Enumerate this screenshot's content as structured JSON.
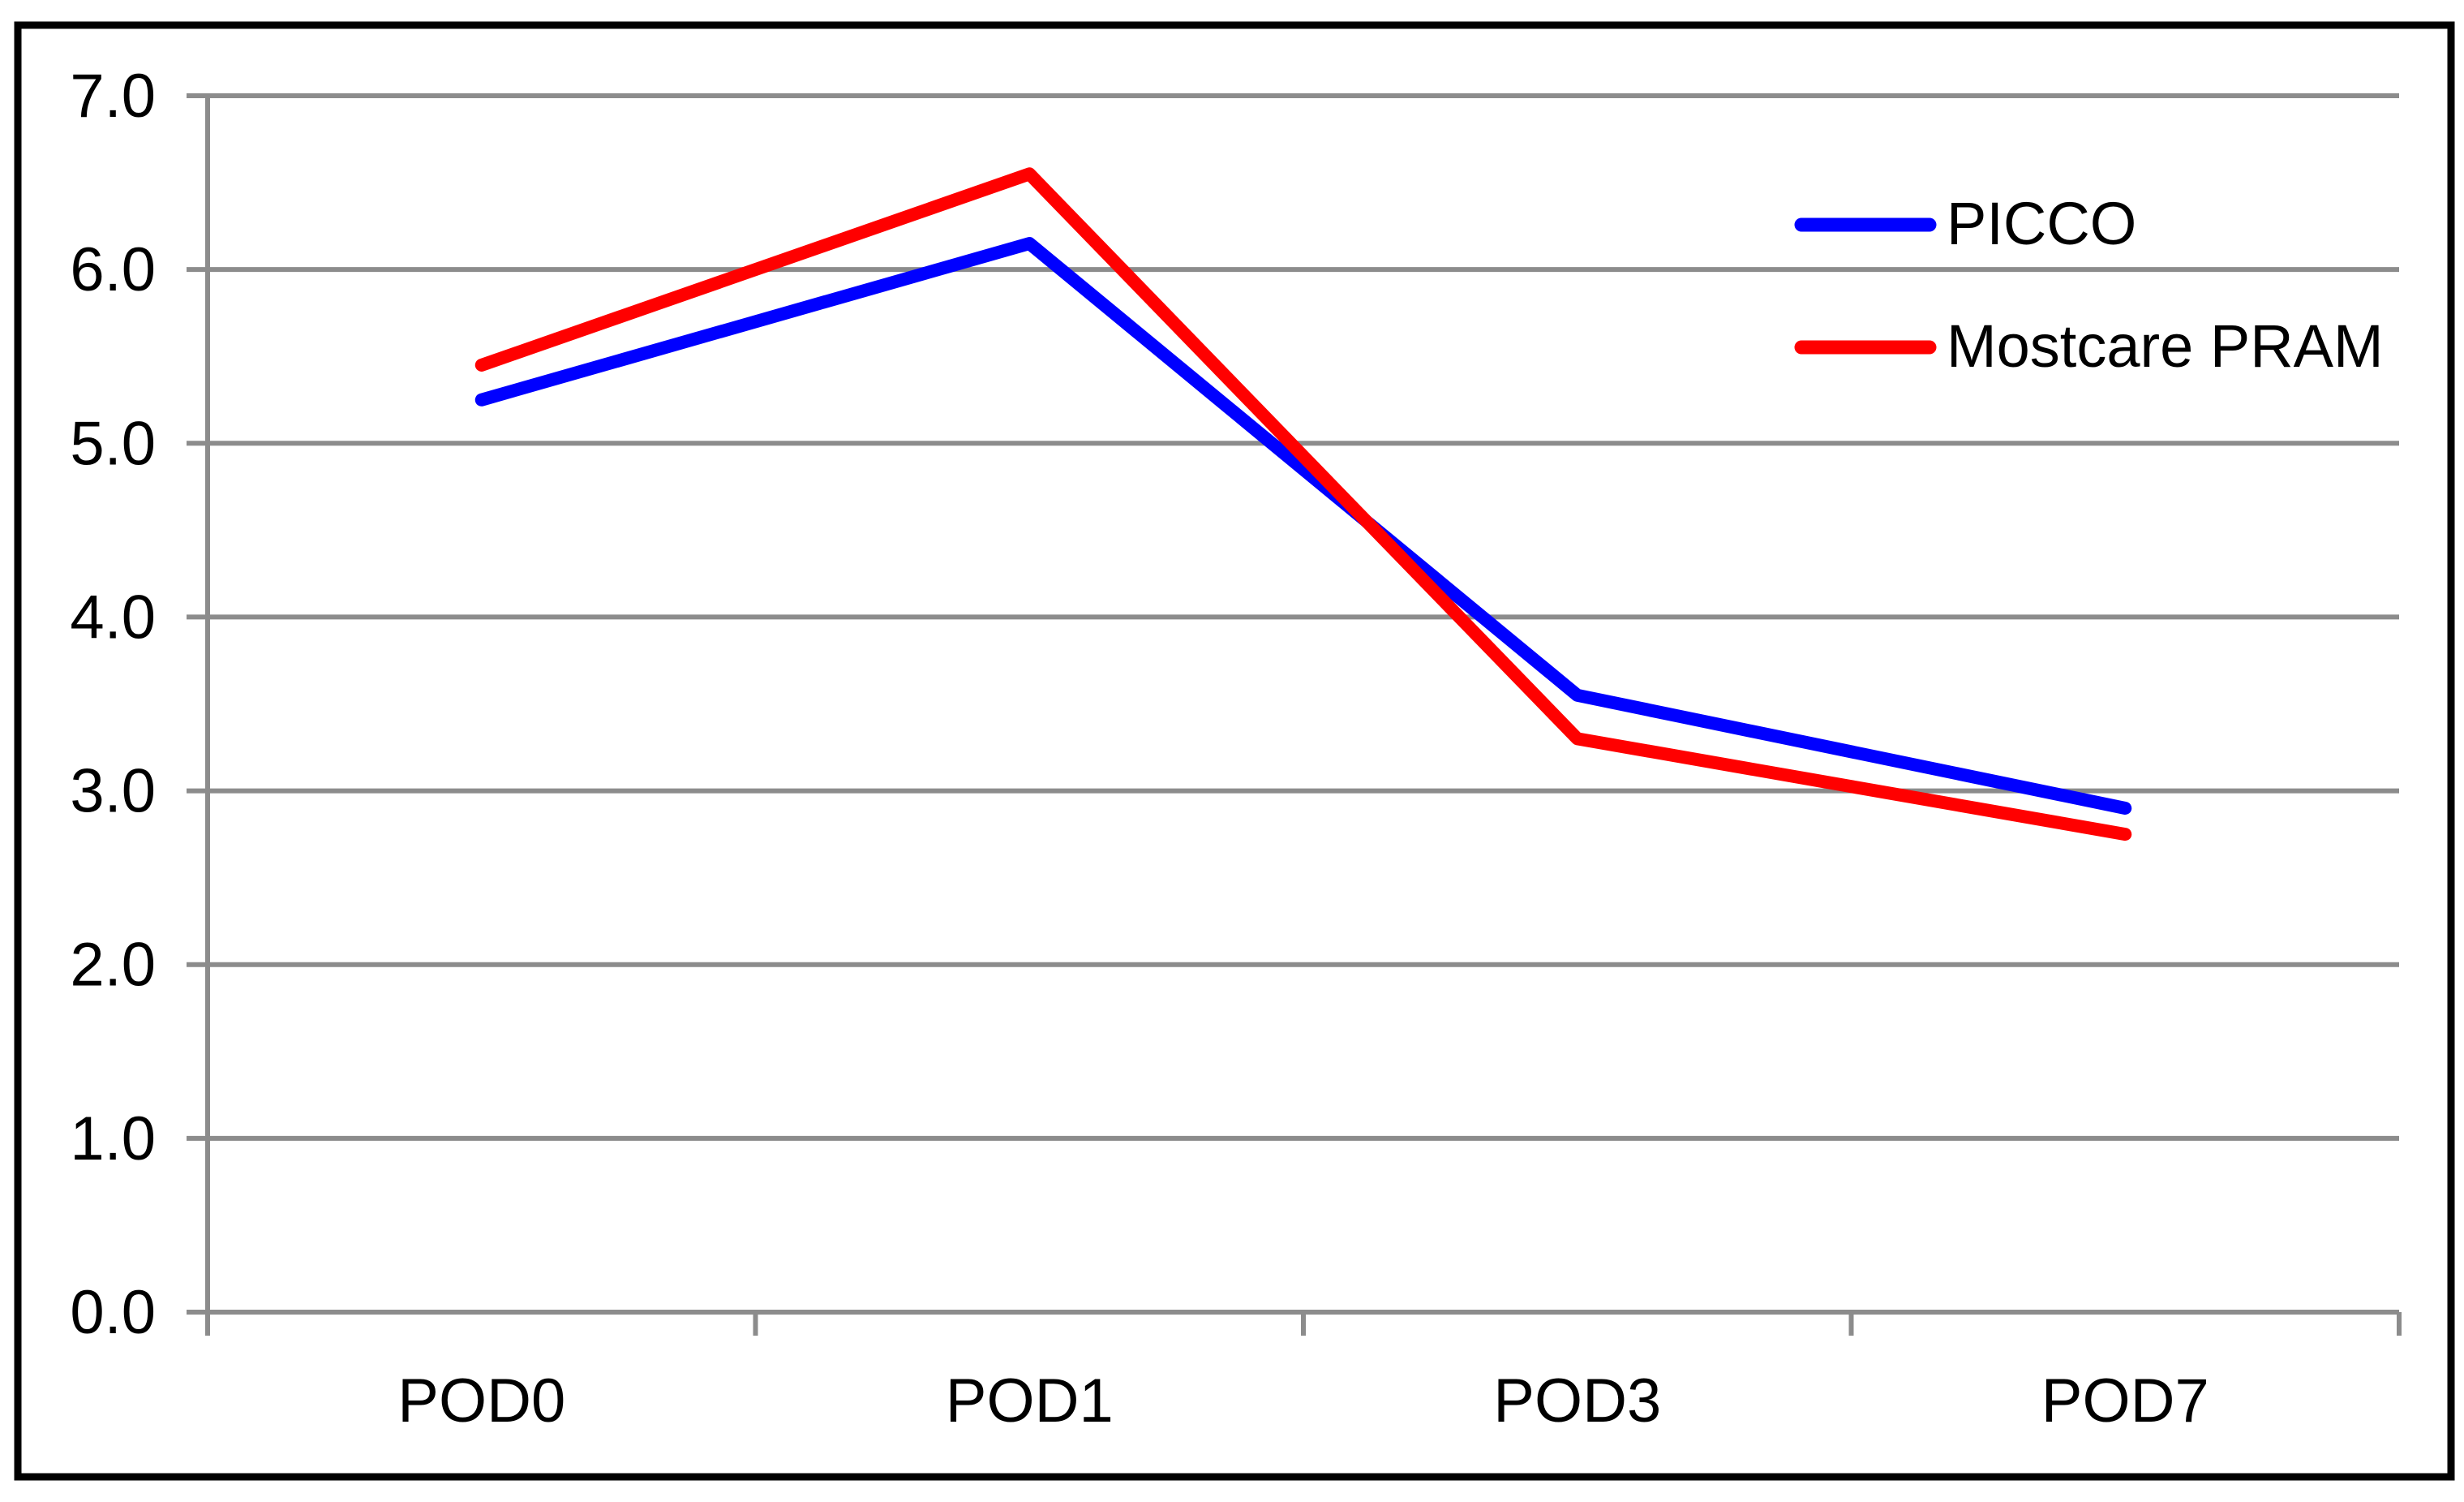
{
  "figure": {
    "background_color": "#FFFFFF",
    "border_color": "#000000"
  },
  "chart_data": {
    "type": "line",
    "title": "",
    "xlabel": "",
    "ylabel": "",
    "categories": [
      "POD0",
      "POD1",
      "POD3",
      "POD7"
    ],
    "series": [
      {
        "name": "PICCO",
        "color": "#0000FF",
        "values": [
          5.25,
          6.15,
          3.55,
          2.9
        ]
      },
      {
        "name": "Mostcare PRAM",
        "color": "#FF0000",
        "values": [
          5.45,
          6.55,
          3.3,
          2.75
        ]
      }
    ],
    "yticks": [
      "0.0",
      "1.0",
      "2.0",
      "3.0",
      "4.0",
      "5.0",
      "6.0",
      "7.0"
    ],
    "ylim": [
      0,
      7
    ],
    "ytick_step": 1,
    "grid": "horizontal",
    "gridline_color": "#8C8C8C",
    "line_width": 16,
    "legend_position": "top-right",
    "markers": "none"
  }
}
